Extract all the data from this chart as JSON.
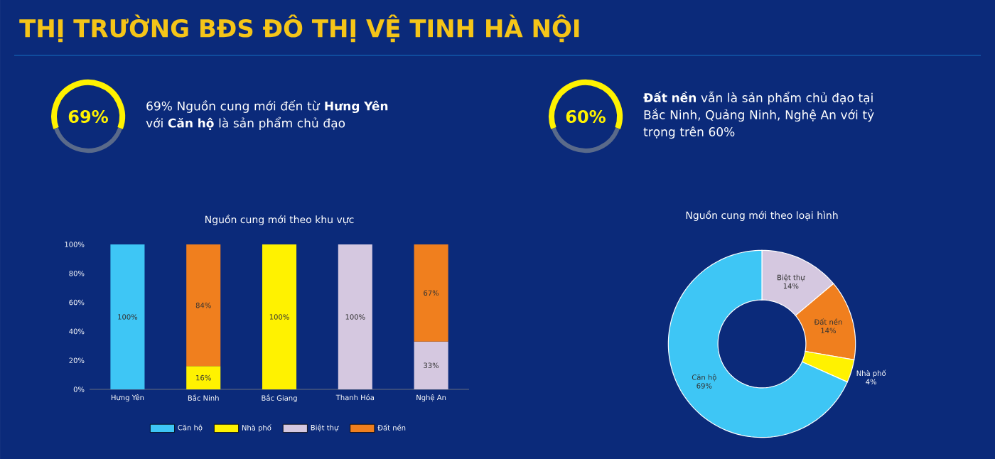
{
  "chart_data": [
    {
      "type": "other",
      "title": "THỊ TRƯỜNG BĐS ĐÔ THỊ VỆ TINH HÀ NỘI",
      "annotations": [
        "69%",
        "69% Nguồn cung mới đến từ **Hưng Yên** với **Căn hộ** là sản phẩm chủ đạo",
        "60%",
        "**Đất nền** vẫn là sản phẩm chủ đạo tại Bắc Ninh, Quảng Ninh, Nghệ An với tỷ trọng trên 60%"
      ]
    },
    {
      "type": "bar",
      "title": "Nguồn cung mới theo khu vực",
      "stacked": true,
      "legend": "bottom",
      "categories": [
        "Hưng Yên",
        "Bắc Ninh",
        "Bắc Giang",
        "Thanh Hóa",
        "Nghệ An"
      ],
      "ylim": [
        0,
        100
      ],
      "yticks": [
        {
          "value": 0,
          "label": "0%"
        },
        {
          "value": 20,
          "label": "20%"
        },
        {
          "value": 40,
          "label": "40%"
        },
        {
          "value": 60,
          "label": "60%"
        },
        {
          "value": 80,
          "label": "80%"
        },
        {
          "value": 100,
          "label": "100%"
        }
      ],
      "series": [
        {
          "name": "Căn hộ",
          "color": "#3ec6f5",
          "values": [
            100,
            0,
            0,
            0,
            0
          ],
          "value_labels": [
            "100%",
            null,
            null,
            null,
            null
          ]
        },
        {
          "name": "Nhà phố",
          "color": "#fff200",
          "values": [
            0,
            16,
            100,
            0,
            0
          ],
          "value_labels": [
            null,
            "16%",
            "100%",
            null,
            null
          ]
        },
        {
          "name": "Biệt thự",
          "color": "#d5c8e0",
          "values": [
            0,
            0,
            0,
            100,
            33
          ],
          "value_labels": [
            null,
            null,
            null,
            "100%",
            "33%"
          ]
        },
        {
          "name": "Đất nền",
          "color": "#f07f1e",
          "values": [
            0,
            84,
            0,
            0,
            67
          ],
          "value_labels": [
            null,
            "84%",
            null,
            null,
            "67%"
          ]
        }
      ]
    },
    {
      "type": "donut",
      "title": "Nguồn cung mới theo loại  hình",
      "categories": [
        "Biệt thự",
        "Đất nền",
        "Nhà phố",
        "Căn hộ"
      ],
      "values": [
        14,
        14,
        4,
        69
      ],
      "value_labels": [
        "14%",
        "14%",
        "4%",
        "69%"
      ],
      "colors": [
        "#d5c8e0",
        "#f07f1e",
        "#fff200",
        "#3ec6f5"
      ]
    }
  ]
}
